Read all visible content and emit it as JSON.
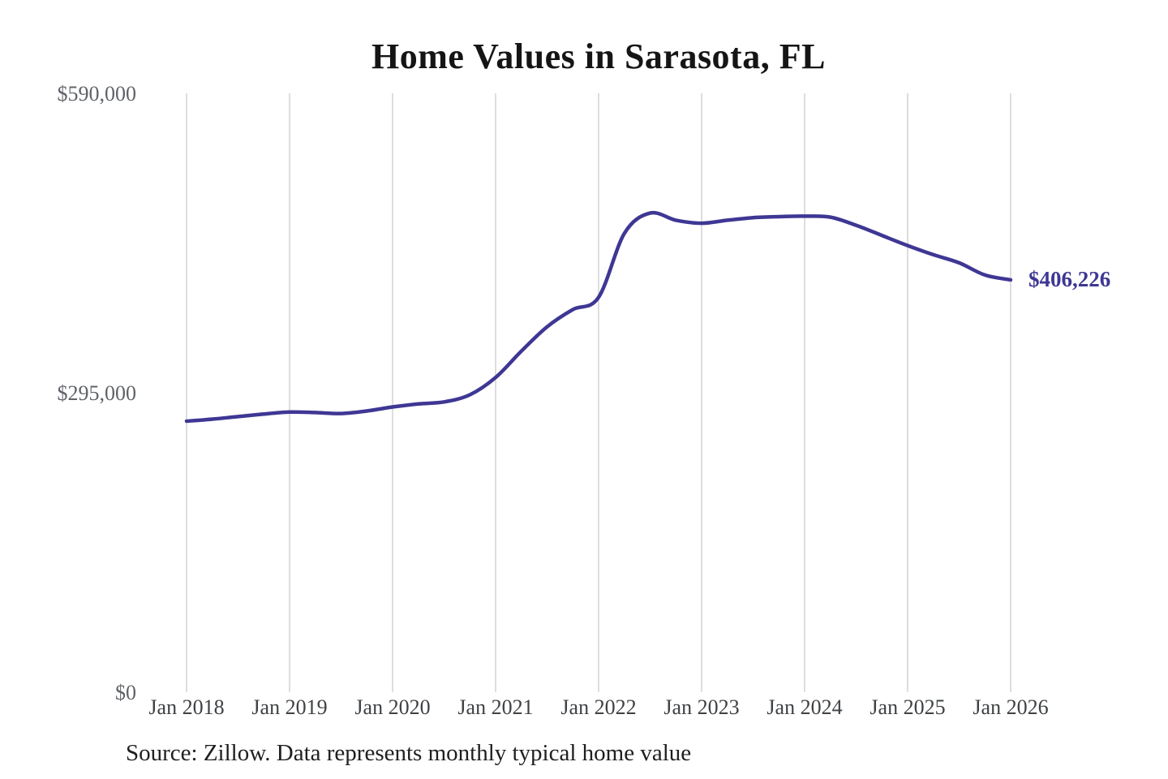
{
  "chart_data": {
    "type": "line",
    "title": "Home Values in Sarasota, FL",
    "xlabel": "",
    "ylabel": "",
    "ylim": [
      0,
      590000
    ],
    "grid": "vertical-only",
    "legend": "none",
    "line_color": "#3e3794",
    "x_tick_labels": [
      "Jan 2018",
      "Jan 2019",
      "Jan 2020",
      "Jan 2021",
      "Jan 2022",
      "Jan 2023",
      "Jan 2024",
      "Jan 2025",
      "Jan 2026"
    ],
    "y_ticks": [
      {
        "label": "$0",
        "value": 0
      },
      {
        "label": "$295,000",
        "value": 295000
      },
      {
        "label": "$590,000",
        "value": 590000
      }
    ],
    "series": [
      {
        "name": "Monthly typical home value",
        "points": [
          {
            "date": "2018-01",
            "value": 267000
          },
          {
            "date": "2018-04",
            "value": 269000
          },
          {
            "date": "2018-07",
            "value": 271500
          },
          {
            "date": "2018-10",
            "value": 274000
          },
          {
            "date": "2019-01",
            "value": 276000
          },
          {
            "date": "2019-04",
            "value": 275500
          },
          {
            "date": "2019-07",
            "value": 274500
          },
          {
            "date": "2019-10",
            "value": 277000
          },
          {
            "date": "2020-01",
            "value": 281000
          },
          {
            "date": "2020-04",
            "value": 284000
          },
          {
            "date": "2020-07",
            "value": 286000
          },
          {
            "date": "2020-10",
            "value": 293000
          },
          {
            "date": "2021-01",
            "value": 310000
          },
          {
            "date": "2021-04",
            "value": 336000
          },
          {
            "date": "2021-07",
            "value": 360000
          },
          {
            "date": "2021-10",
            "value": 377000
          },
          {
            "date": "2022-01",
            "value": 389000
          },
          {
            "date": "2022-04",
            "value": 452000
          },
          {
            "date": "2022-07",
            "value": 472000
          },
          {
            "date": "2022-10",
            "value": 465000
          },
          {
            "date": "2023-01",
            "value": 462000
          },
          {
            "date": "2023-04",
            "value": 465000
          },
          {
            "date": "2023-07",
            "value": 467500
          },
          {
            "date": "2023-10",
            "value": 468500
          },
          {
            "date": "2024-01",
            "value": 469000
          },
          {
            "date": "2024-04",
            "value": 468000
          },
          {
            "date": "2024-07",
            "value": 460000
          },
          {
            "date": "2024-10",
            "value": 450000
          },
          {
            "date": "2025-01",
            "value": 440000
          },
          {
            "date": "2025-04",
            "value": 431000
          },
          {
            "date": "2025-07",
            "value": 423000
          },
          {
            "date": "2025-10",
            "value": 411000
          },
          {
            "date": "2026-01",
            "value": 406226
          }
        ]
      }
    ],
    "end_label": "$406,226",
    "end_value": 406226,
    "source_note": "Source: Zillow. Data represents monthly typical home value"
  }
}
